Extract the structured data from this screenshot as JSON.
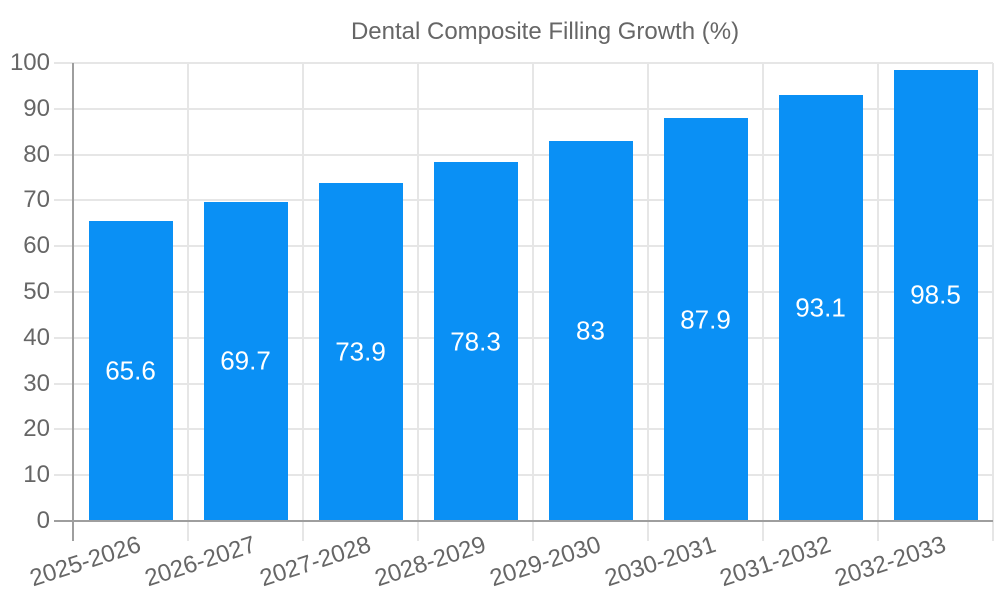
{
  "chart_data": {
    "type": "bar",
    "title": "Dental Composite Filling Growth (%)",
    "categories": [
      "2025-2026",
      "2026-2027",
      "2027-2028",
      "2028-2029",
      "2029-2030",
      "2030-2031",
      "2031-2032",
      "2032-2033"
    ],
    "values": [
      65.6,
      69.7,
      73.9,
      78.3,
      83,
      87.9,
      93.1,
      98.5
    ],
    "value_labels": [
      "65.6",
      "69.7",
      "73.9",
      "78.3",
      "83",
      "87.9",
      "93.1",
      "98.5"
    ],
    "xlabel": "",
    "ylabel": "",
    "ylim": [
      0,
      100
    ],
    "ytick_step": 10,
    "yticks": [
      0,
      10,
      20,
      30,
      40,
      50,
      60,
      70,
      80,
      90,
      100
    ],
    "grid": true,
    "legend": {
      "position": "top-center",
      "label": "Dental Composite Filling Growth (%)"
    },
    "colors": {
      "bar": "#0a90f5",
      "grid": "#e6e6e6",
      "axis": "#9e9e9e",
      "tick_text": "#666666",
      "value_text": "#ffffff",
      "background": "#ffffff"
    }
  }
}
